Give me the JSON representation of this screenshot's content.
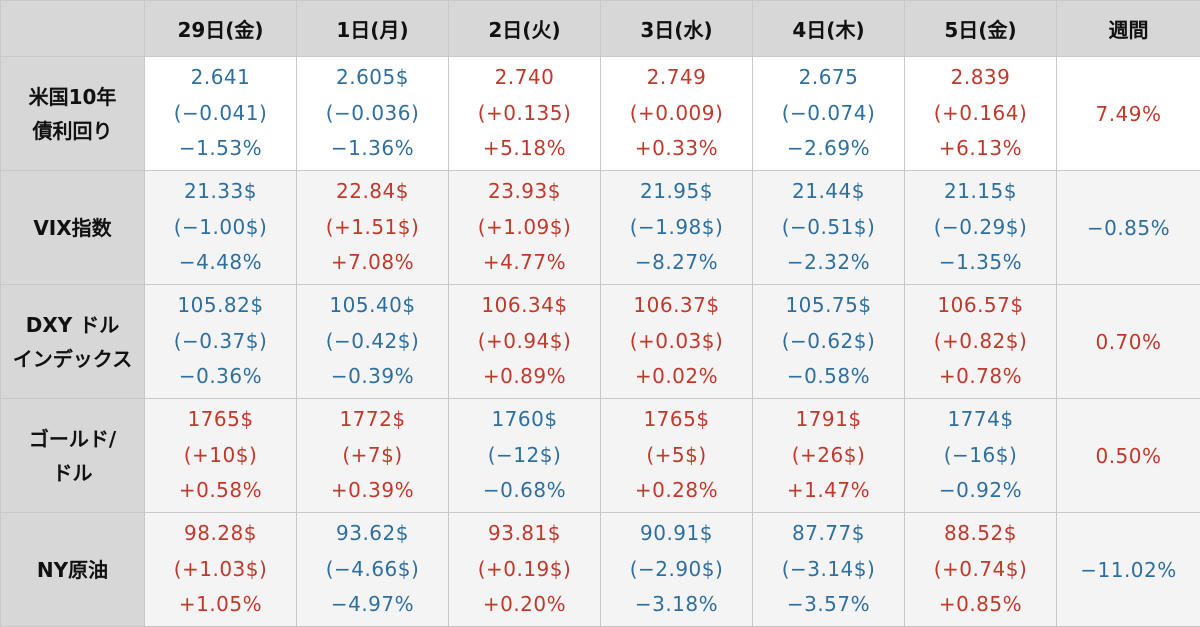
{
  "colors": {
    "up": "#c0392b",
    "down": "#2e6f9e",
    "header_bg": "#d7d7d7"
  },
  "header": {
    "corner": "",
    "days": [
      "29日(金)",
      "1日(月)",
      "2日(火)",
      "3日(水)",
      "4日(木)",
      "5日(金)"
    ],
    "week": "週間"
  },
  "rows": [
    {
      "label": [
        "米国10年",
        "債利回り"
      ],
      "cells": [
        {
          "dir": "down",
          "lines": [
            "2.641",
            "(−0.041)",
            "−1.53%"
          ]
        },
        {
          "dir": "down",
          "lines": [
            "2.605$",
            "(−0.036)",
            "−1.36%"
          ]
        },
        {
          "dir": "up",
          "lines": [
            "2.740",
            "(+0.135)",
            "+5.18%"
          ]
        },
        {
          "dir": "up",
          "lines": [
            "2.749",
            "(+0.009)",
            "+0.33%"
          ]
        },
        {
          "dir": "down",
          "lines": [
            "2.675",
            "(−0.074)",
            "−2.69%"
          ]
        },
        {
          "dir": "up",
          "lines": [
            "2.839",
            "(+0.164)",
            "+6.13%"
          ]
        }
      ],
      "week": {
        "dir": "up",
        "value": "7.49%"
      }
    },
    {
      "label": [
        "VIX指数"
      ],
      "cells": [
        {
          "dir": "down",
          "lines": [
            "21.33$",
            "(−1.00$)",
            "−4.48%"
          ]
        },
        {
          "dir": "up",
          "lines": [
            "22.84$",
            "(+1.51$)",
            "+7.08%"
          ]
        },
        {
          "dir": "up",
          "lines": [
            "23.93$",
            "(+1.09$)",
            "+4.77%"
          ]
        },
        {
          "dir": "down",
          "lines": [
            "21.95$",
            "(−1.98$)",
            "−8.27%"
          ]
        },
        {
          "dir": "down",
          "lines": [
            "21.44$",
            "(−0.51$)",
            "−2.32%"
          ]
        },
        {
          "dir": "down",
          "lines": [
            "21.15$",
            "(−0.29$)",
            "−1.35%"
          ]
        }
      ],
      "week": {
        "dir": "down",
        "value": "−0.85%"
      }
    },
    {
      "label": [
        "DXY ドル",
        "インデックス"
      ],
      "cells": [
        {
          "dir": "down",
          "lines": [
            "105.82$",
            "(−0.37$)",
            "−0.36%"
          ]
        },
        {
          "dir": "down",
          "lines": [
            "105.40$",
            "(−0.42$)",
            "−0.39%"
          ]
        },
        {
          "dir": "up",
          "lines": [
            "106.34$",
            "(+0.94$)",
            "+0.89%"
          ]
        },
        {
          "dir": "up",
          "lines": [
            "106.37$",
            "(+0.03$)",
            "+0.02%"
          ]
        },
        {
          "dir": "down",
          "lines": [
            "105.75$",
            "(−0.62$)",
            "−0.58%"
          ]
        },
        {
          "dir": "up",
          "lines": [
            "106.57$",
            "(+0.82$)",
            "+0.78%"
          ]
        }
      ],
      "week": {
        "dir": "up",
        "value": "0.70%"
      }
    },
    {
      "label": [
        "ゴールド/",
        "ドル"
      ],
      "cells": [
        {
          "dir": "up",
          "lines": [
            "1765$",
            "(+10$)",
            "+0.58%"
          ]
        },
        {
          "dir": "up",
          "lines": [
            "1772$",
            "(+7$)",
            "+0.39%"
          ]
        },
        {
          "dir": "down",
          "lines": [
            "1760$",
            "(−12$)",
            "−0.68%"
          ]
        },
        {
          "dir": "up",
          "lines": [
            "1765$",
            "(+5$)",
            "+0.28%"
          ]
        },
        {
          "dir": "up",
          "lines": [
            "1791$",
            "(+26$)",
            "+1.47%"
          ]
        },
        {
          "dir": "down",
          "lines": [
            "1774$",
            "(−16$)",
            "−0.92%"
          ]
        }
      ],
      "week": {
        "dir": "up",
        "value": "0.50%"
      }
    },
    {
      "label": [
        "NY原油"
      ],
      "cells": [
        {
          "dir": "up",
          "lines": [
            "98.28$",
            "(+1.03$)",
            "+1.05%"
          ]
        },
        {
          "dir": "down",
          "lines": [
            "93.62$",
            "(−4.66$)",
            "−4.97%"
          ]
        },
        {
          "dir": "up",
          "lines": [
            "93.81$",
            "(+0.19$)",
            "+0.20%"
          ]
        },
        {
          "dir": "down",
          "lines": [
            "90.91$",
            "(−2.90$)",
            "−3.18%"
          ]
        },
        {
          "dir": "down",
          "lines": [
            "87.77$",
            "(−3.14$)",
            "−3.57%"
          ]
        },
        {
          "dir": "up",
          "lines": [
            "88.52$",
            "(+0.74$)",
            "+0.85%"
          ]
        }
      ],
      "week": {
        "dir": "down",
        "value": "−11.02%"
      }
    }
  ]
}
